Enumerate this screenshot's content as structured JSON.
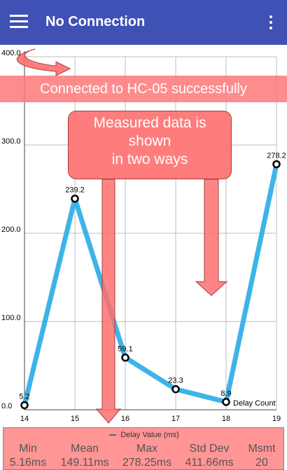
{
  "app_bar": {
    "title": "No Connection",
    "menu_icon": "hamburger-menu-icon",
    "overflow_icon": "more-vert-icon",
    "color": "#3f51b5"
  },
  "chart_data": {
    "type": "line",
    "x": [
      14,
      15,
      16,
      17,
      18,
      19
    ],
    "series": [
      {
        "name": "Delay Value (ms)",
        "values": [
          5.2,
          239.2,
          59.1,
          23.3,
          8.9,
          278.2
        ],
        "color": "#3db4e8"
      }
    ],
    "x_ticks": [
      "14",
      "15",
      "16",
      "17",
      "18",
      "19"
    ],
    "y_ticks": [
      "0.0",
      "100.0",
      "200.0",
      "300.0",
      "400.0"
    ],
    "point_labels": [
      "5.2",
      "239.2",
      "59.1",
      "23.3",
      "8.9",
      "278.2"
    ],
    "xlabel": "Delay Count",
    "ylim": [
      0,
      400
    ],
    "xlim": [
      14,
      19
    ],
    "grid": true
  },
  "annotations": {
    "banner": "Connected to HC-05 successfully",
    "callout_line1": "Measured data is",
    "callout_line2": "shown",
    "callout_line3": "in two ways",
    "overlay_color": "#ff7878"
  },
  "stats": {
    "legend_label": "Delay Value (ms)",
    "items": [
      {
        "label": "Min",
        "value": "5.16ms"
      },
      {
        "label": "Mean",
        "value": "149.11ms"
      },
      {
        "label": "Max",
        "value": "278.25ms"
      },
      {
        "label": "Std Dev",
        "value": "411.66ms"
      },
      {
        "label": "Msmt",
        "value": "20"
      }
    ]
  }
}
